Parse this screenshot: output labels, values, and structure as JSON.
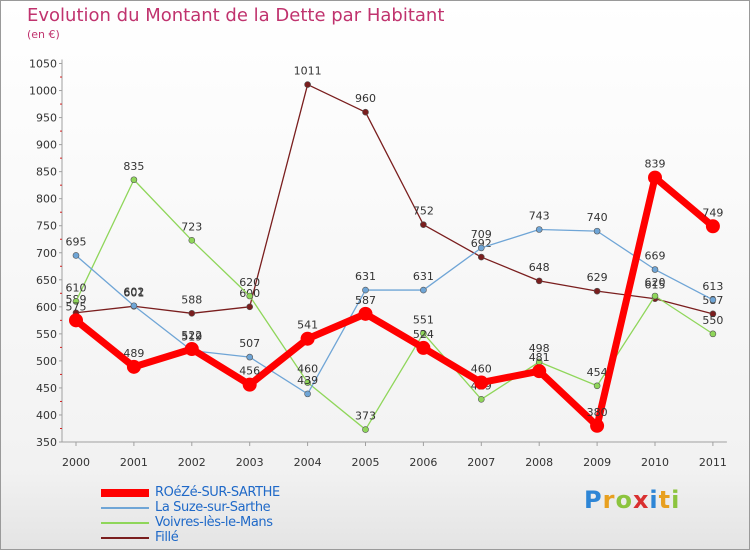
{
  "chart_data": {
    "type": "line",
    "title": "Evolution du Montant de la Dette par Habitant",
    "subtitle": "(en €)",
    "x": [
      "2000",
      "2001",
      "2002",
      "2003",
      "2004",
      "2005",
      "2006",
      "2007",
      "2008",
      "2009",
      "2010",
      "2011"
    ],
    "ylim": [
      350,
      1050
    ],
    "yticks": [
      350,
      400,
      450,
      500,
      550,
      600,
      650,
      700,
      750,
      800,
      850,
      900,
      950,
      1000,
      1050
    ],
    "grid": false,
    "legend_placement": "bottom-left",
    "series": [
      {
        "name": "Fillé",
        "color": "#7a1e1e",
        "values": [
          589,
          601,
          588,
          600,
          1011,
          960,
          752,
          692,
          648,
          629,
          615,
          587
        ]
      },
      {
        "name": "Voivres-lès-le-Mans",
        "color": "#8fd65a",
        "values": [
          610,
          835,
          723,
          620,
          460,
          373,
          551,
          429,
          498,
          454,
          620,
          550
        ]
      },
      {
        "name": "La Suze-sur-Sarthe",
        "color": "#6fa5d6",
        "values": [
          695,
          602,
          519,
          507,
          439,
          631,
          631,
          709,
          743,
          740,
          669,
          613
        ]
      },
      {
        "name": "ROéZé-SUR-SARTHE",
        "color": "#ff0000",
        "values": [
          575,
          489,
          522,
          456,
          541,
          587,
          524,
          460,
          481,
          380,
          839,
          749
        ]
      }
    ]
  },
  "brand": {
    "text": "Proxiti",
    "colors": [
      "#2e86d6",
      "#e8a020",
      "#8cc43e",
      "#d93030",
      "#2e86d6",
      "#e8a020",
      "#8cc43e"
    ]
  }
}
